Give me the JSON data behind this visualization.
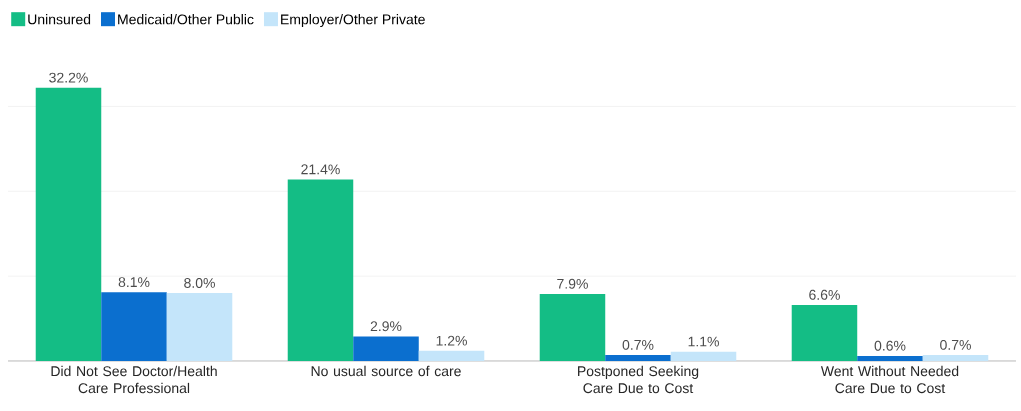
{
  "chart_data": {
    "type": "bar",
    "categories": [
      "Did Not See Doctor/Health Care Professional",
      "No usual source of care",
      "Postponed Seeking Care Due to Cost",
      "Went Without Needed Care Due to Cost"
    ],
    "series": [
      {
        "name": "Uninsured",
        "color": "#14bd85",
        "values": [
          32.2,
          21.4,
          7.9,
          6.6
        ],
        "value_labels": [
          "32.2%",
          "21.4%",
          "7.9%",
          "6.6%"
        ]
      },
      {
        "name": "Medicaid/Other Public",
        "color": "#0b6fcf",
        "values": [
          8.1,
          2.9,
          0.7,
          0.6
        ],
        "value_labels": [
          "8.1%",
          "2.9%",
          "0.7%",
          "0.6%"
        ]
      },
      {
        "name": "Employer/Other Private",
        "color": "#c4e5fa",
        "values": [
          8.0,
          1.2,
          1.1,
          0.7
        ],
        "value_labels": [
          "8.0%",
          "1.2%",
          "1.1%",
          "0.7%"
        ]
      }
    ],
    "yticks": [
      {
        "value": 10,
        "label": null
      },
      {
        "value": 20,
        "label": null
      },
      {
        "value": 30,
        "label": null
      }
    ],
    "grid": "y",
    "legend": "top left",
    "tick_labels": "x"
  }
}
